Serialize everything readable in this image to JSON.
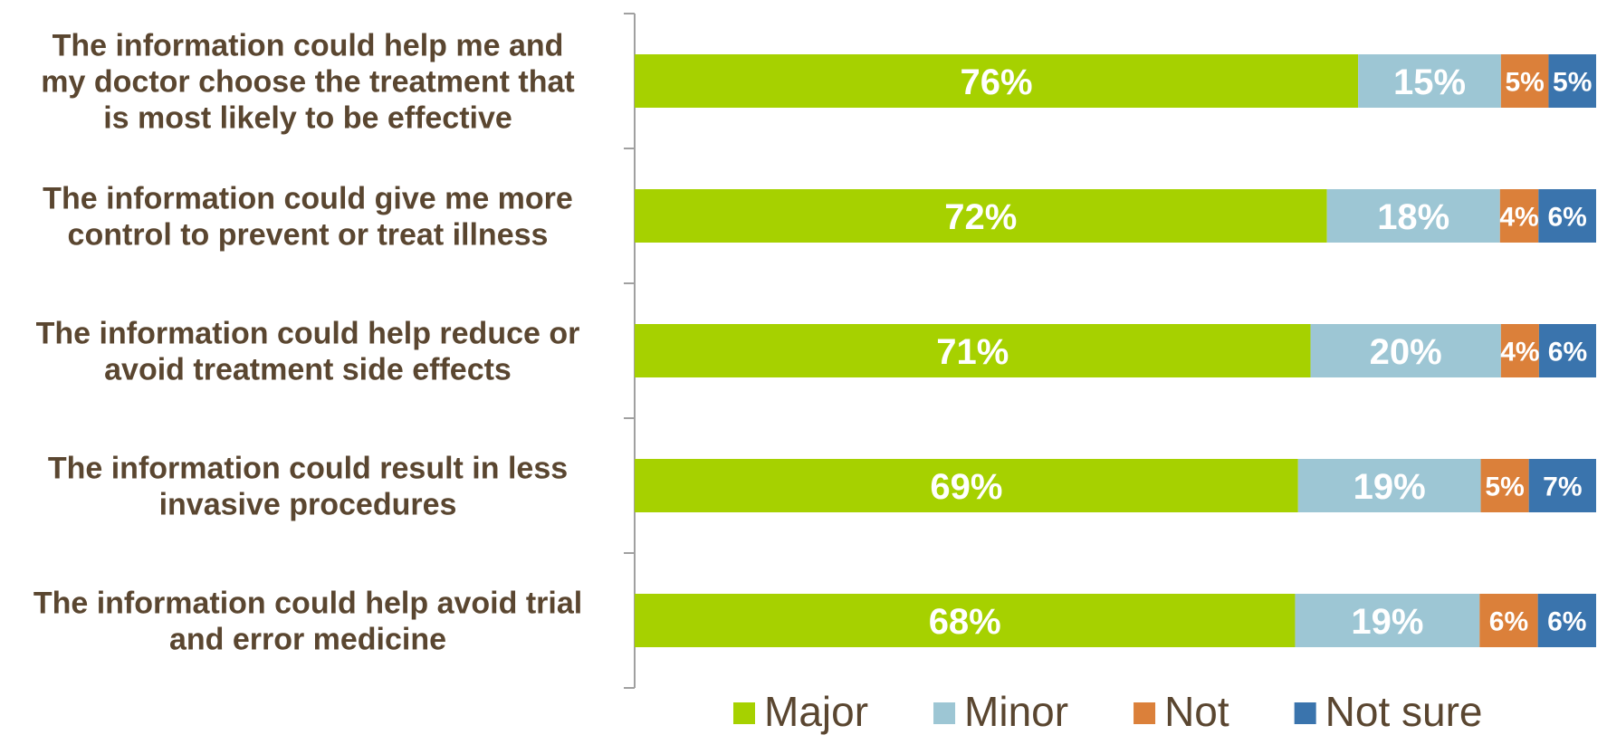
{
  "chart_data": {
    "type": "bar",
    "orientation": "horizontal",
    "stacked": true,
    "percent_scale": true,
    "categories": [
      [
        "The information could help me and",
        "my doctor choose the treatment that",
        "is most likely to be effective"
      ],
      [
        "The information could give me more",
        "control to prevent or treat illness"
      ],
      [
        "The information could help reduce or",
        "avoid treatment side effects"
      ],
      [
        "The information could result in less",
        "invasive procedures"
      ],
      [
        "The information could help avoid trial",
        "and error medicine"
      ]
    ],
    "series": [
      {
        "name": "Major",
        "color": "#a6d100",
        "values": [
          76,
          72,
          71,
          69,
          68
        ],
        "labels": [
          "76%",
          "72%",
          "71%",
          "69%",
          "68%"
        ]
      },
      {
        "name": "Minor",
        "color": "#9dc6d4",
        "values": [
          15,
          18,
          20,
          19,
          19
        ],
        "labels": [
          "15%",
          "18%",
          "20%",
          "19%",
          "19%"
        ]
      },
      {
        "name": "Not",
        "color": "#db803a",
        "values": [
          5,
          4,
          4,
          5,
          6
        ],
        "labels": [
          "5%",
          "4%",
          "4%",
          "5%",
          "6%"
        ]
      },
      {
        "name": "Not sure",
        "color": "#3a74ad",
        "values": [
          5,
          6,
          6,
          7,
          6
        ],
        "labels": [
          "5%",
          "6%",
          "6%",
          "7%",
          "6%"
        ]
      }
    ],
    "legend_position": "bottom",
    "grid": false,
    "colors": {
      "label_text": "#5a4630",
      "axis_line": "#a0a0a0",
      "data_label_text": "#ffffff"
    }
  }
}
